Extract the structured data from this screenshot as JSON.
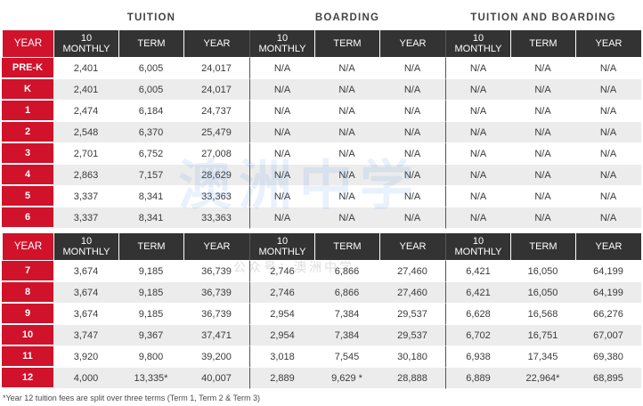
{
  "group_headers": [
    "TUITION",
    "BOARDING",
    "TUITION AND BOARDING"
  ],
  "column_headers": [
    "YEAR",
    "10 MONTHLY",
    "TERM",
    "YEAR",
    "10 MONTHLY",
    "TERM",
    "YEAR",
    "10 MONTHLY",
    "TERM",
    "YEAR"
  ],
  "table1": {
    "rows": [
      [
        "PRE-K",
        "2,401",
        "6,005",
        "24,017",
        "N/A",
        "N/A",
        "N/A",
        "N/A",
        "N/A",
        "N/A"
      ],
      [
        "K",
        "2,401",
        "6,005",
        "24,017",
        "N/A",
        "N/A",
        "N/A",
        "N/A",
        "N/A",
        "N/A"
      ],
      [
        "1",
        "2,474",
        "6,184",
        "24,737",
        "N/A",
        "N/A",
        "N/A",
        "N/A",
        "N/A",
        "N/A"
      ],
      [
        "2",
        "2,548",
        "6,370",
        "25,479",
        "N/A",
        "N/A",
        "N/A",
        "N/A",
        "N/A",
        "N/A"
      ],
      [
        "3",
        "2,701",
        "6,752",
        "27,008",
        "N/A",
        "N/A",
        "N/A",
        "N/A",
        "N/A",
        "N/A"
      ],
      [
        "4",
        "2,863",
        "7,157",
        "28,629",
        "N/A",
        "N/A",
        "N/A",
        "N/A",
        "N/A",
        "N/A"
      ],
      [
        "5",
        "3,337",
        "8,341",
        "33,363",
        "N/A",
        "N/A",
        "N/A",
        "N/A",
        "N/A",
        "N/A"
      ],
      [
        "6",
        "3,337",
        "8,341",
        "33,363",
        "N/A",
        "N/A",
        "N/A",
        "N/A",
        "N/A",
        "N/A"
      ]
    ]
  },
  "table2": {
    "rows": [
      [
        "7",
        "3,674",
        "9,185",
        "36,739",
        "2,746",
        "6,866",
        "27,460",
        "6,421",
        "16,050",
        "64,199"
      ],
      [
        "8",
        "3,674",
        "9,185",
        "36,739",
        "2,746",
        "6,866",
        "27,460",
        "6,421",
        "16,050",
        "64,199"
      ],
      [
        "9",
        "3,674",
        "9,185",
        "36,739",
        "2,954",
        "7,384",
        "29,537",
        "6,628",
        "16,568",
        "66,276"
      ],
      [
        "10",
        "3,747",
        "9,367",
        "37,471",
        "2,954",
        "7,384",
        "29,537",
        "6,702",
        "16,751",
        "67,007"
      ],
      [
        "11",
        "3,920",
        "9,800",
        "39,200",
        "3,018",
        "7,545",
        "30,180",
        "6,938",
        "17,345",
        "69,380"
      ],
      [
        "12",
        "4,000",
        "13,335*",
        "40,007",
        "2,889",
        "9,629 *",
        "28,888",
        "6,889",
        "22,964*",
        "68,895"
      ]
    ]
  },
  "footnote": "*Year 12 tuition fees are split over three terms (Term 1, Term 2 & Term 3)",
  "watermark": "澳洲中学",
  "watermark_sub": "公众号：澳洲中学",
  "colors": {
    "accent_red": "#d0122b",
    "header_dark": "#333333",
    "stripe": "#ececec"
  }
}
